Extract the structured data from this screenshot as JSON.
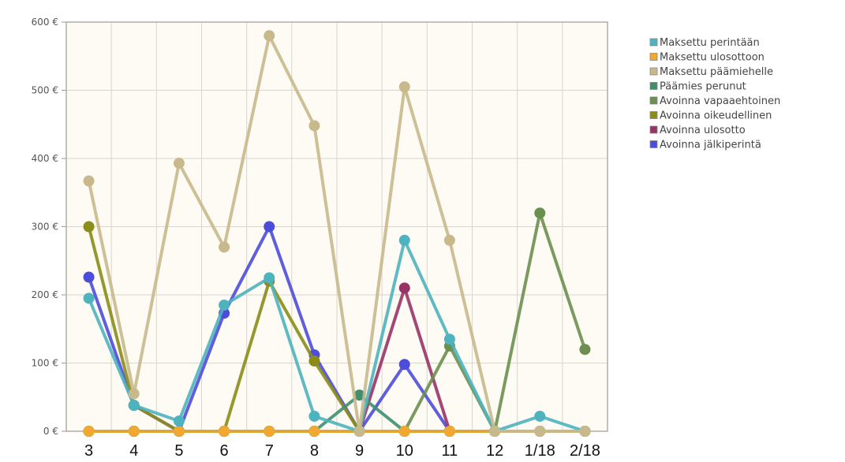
{
  "chart_data": {
    "type": "line",
    "categories": [
      "3",
      "4",
      "5",
      "6",
      "7",
      "8",
      "9",
      "10",
      "11",
      "12",
      "1/18",
      "2/18"
    ],
    "ylim": [
      0,
      600
    ],
    "yticks": [
      "0 €",
      "100 €",
      "200 €",
      "300 €",
      "400 €",
      "500 €",
      "600 €"
    ],
    "grid": true,
    "legend_position": "top-right",
    "series": [
      {
        "name": "Maksettu päämiehelle",
        "color": "#c8b98c",
        "values": [
          367,
          55,
          393,
          270,
          580,
          448,
          0,
          505,
          280,
          0,
          0,
          0
        ]
      },
      {
        "name": "Maksettu perintään",
        "color": "#4fb3bf",
        "values": [
          195,
          38,
          15,
          185,
          225,
          22,
          0,
          280,
          135,
          0,
          22,
          0
        ]
      },
      {
        "name": "Maksettu ulosottoon",
        "color": "#f0a830",
        "values": [
          0,
          0,
          0,
          0,
          0,
          0,
          0,
          0,
          0,
          0,
          0,
          0
        ]
      },
      {
        "name": "Päämies perunut",
        "color": "#3f8f6f",
        "values": [
          0,
          0,
          0,
          0,
          0,
          0,
          53,
          0,
          0,
          0,
          0,
          0
        ]
      },
      {
        "name": "Avoinna vapaaehtoinen",
        "color": "#6b8f4f",
        "values": [
          0,
          0,
          0,
          0,
          0,
          0,
          0,
          0,
          125,
          0,
          320,
          120
        ]
      },
      {
        "name": "Avoinna oikeudellinen",
        "color": "#8c8c1a",
        "values": [
          300,
          38,
          0,
          0,
          220,
          103,
          0,
          0,
          0,
          0,
          0,
          0
        ]
      },
      {
        "name": "Avoinna ulosotto",
        "color": "#993366",
        "values": [
          0,
          0,
          0,
          0,
          0,
          0,
          0,
          210,
          0,
          0,
          0,
          0
        ]
      },
      {
        "name": "Avoinna jälkiperintä",
        "color": "#4d4ddb",
        "values": [
          226,
          38,
          0,
          173,
          300,
          112,
          0,
          98,
          0,
          0,
          0,
          0
        ]
      }
    ],
    "legend_order": [
      "Maksettu perintään",
      "Maksettu ulosottoon",
      "Maksettu päämiehelle",
      "Päämies perunut",
      "Avoinna vapaaehtoinen",
      "Avoinna oikeudellinen",
      "Avoinna ulosotto",
      "Avoinna jälkiperintä"
    ]
  }
}
